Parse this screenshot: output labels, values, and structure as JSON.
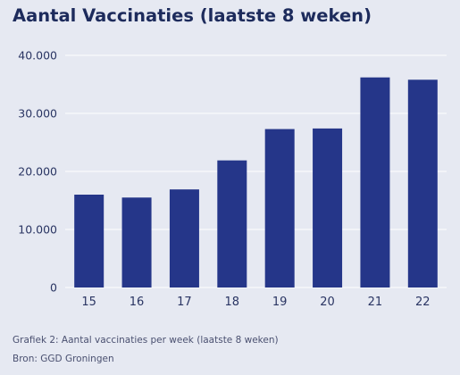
{
  "title": "Aantal Vaccinaties (laatste 8 weken)",
  "caption": "Grafiek 2: Aantal vaccinaties per week (laatste 8 weken)",
  "source": "Bron: GGD Groningen",
  "colors": {
    "bar": "#253689",
    "grid": "#ffffff",
    "background": "#e6e9f2"
  },
  "chart_data": {
    "type": "bar",
    "categories": [
      "15",
      "16",
      "17",
      "18",
      "19",
      "20",
      "21",
      "22"
    ],
    "values": [
      16000,
      15500,
      16900,
      21900,
      27300,
      27400,
      36200,
      35800
    ],
    "ylim": [
      0,
      40000
    ],
    "yticks": [
      0,
      10000,
      20000,
      30000,
      40000
    ],
    "ytick_labels": [
      "0",
      "10.000",
      "20.000",
      "30.000",
      "40.000"
    ],
    "grid": true,
    "legend": "none"
  }
}
